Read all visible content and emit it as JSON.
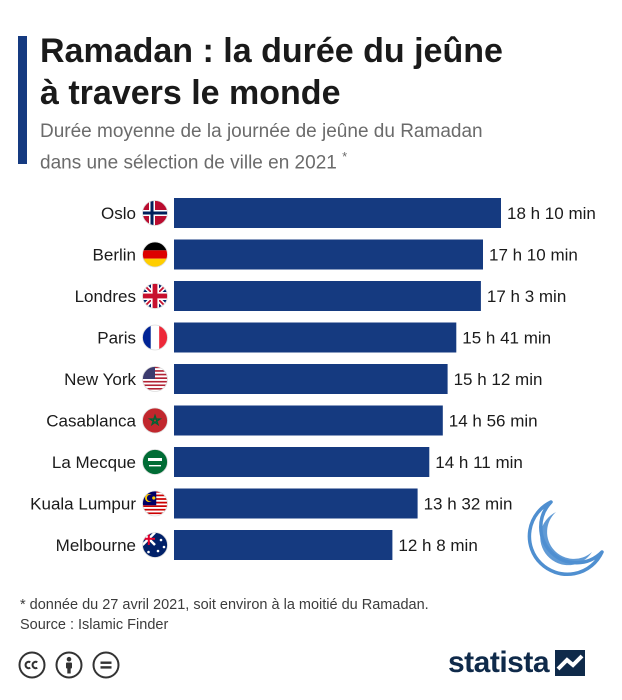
{
  "header": {
    "title_line1": "Ramadan : la durée du jeûne",
    "title_line2": "à travers le monde",
    "subtitle_line1": "Durée moyenne de la journée de jeûne du Ramadan",
    "subtitle_line2": "dans une sélection de ville en 2021",
    "subtitle_mark": "*"
  },
  "colors": {
    "bar": "#153a80",
    "accent": "#153a80",
    "moon": "#4f8fd0"
  },
  "chart_data": {
    "type": "bar",
    "orientation": "horizontal",
    "categories": [
      "Oslo",
      "Berlin",
      "Londres",
      "Paris",
      "New York",
      "Casablanca",
      "La Mecque",
      "Kuala Lumpur",
      "Melbourne"
    ],
    "values": [
      1090,
      1030,
      1023,
      941,
      912,
      896,
      851,
      812,
      728
    ],
    "value_unit": "minutes",
    "data_labels": [
      "18 h 10 min",
      "17 h 10 min",
      "17 h 3 min",
      "15 h 41 min",
      "15 h 12 min",
      "14 h 56 min",
      "14 h 11 min",
      "13 h 32 min",
      "12 h 8 min"
    ],
    "flags": [
      "norway-flag",
      "germany-flag",
      "uk-flag",
      "france-flag",
      "usa-flag",
      "morocco-flag",
      "saudi-flag",
      "malaysia-flag",
      "australia-flag"
    ]
  },
  "footer": {
    "footnote": "* donnée du 27 avril 2021, soit environ à la moitié du Ramadan.",
    "source": "Source : Islamic Finder",
    "brand": "statista",
    "license_icons": [
      "cc-icon",
      "by-icon",
      "nd-icon"
    ]
  }
}
